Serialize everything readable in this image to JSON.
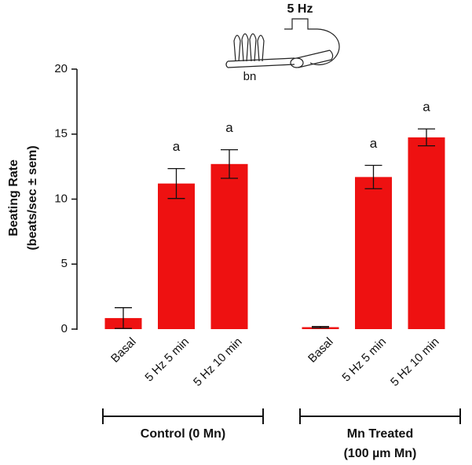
{
  "chart_data": {
    "type": "bar",
    "ylabel": [
      "Beating Rate",
      "(beats/sec ± sem)"
    ],
    "categories": [
      "Basal",
      "5 Hz 5 min",
      "5 Hz 10 min",
      "Basal",
      "5 Hz 5 min",
      "5 Hz 10 min"
    ],
    "values": [
      0.85,
      11.2,
      12.7,
      0.15,
      11.7,
      14.75
    ],
    "errors": [
      0.8,
      1.15,
      1.1,
      0.05,
      0.9,
      0.65
    ],
    "significance": [
      null,
      "a",
      "a",
      null,
      "a",
      "a"
    ],
    "groups": [
      [
        "Control (0 Mn)"
      ],
      [
        "Mn Treated",
        "(100 µm Mn)"
      ]
    ],
    "color": "#ee1111",
    "ylim": [
      0,
      20
    ],
    "yticks": [
      0,
      5,
      10,
      15,
      20
    ],
    "inset_labels": {
      "stimulus": "5 Hz",
      "nerve": "bn"
    }
  }
}
